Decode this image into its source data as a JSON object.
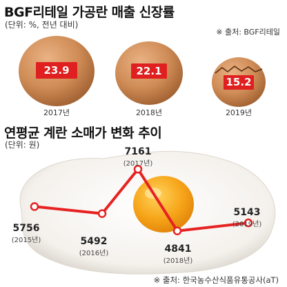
{
  "header": {
    "title": "BGF리테일 가공란 매출 신장률",
    "unit": "(단위: %, 전년 대비)",
    "source": "※ 출처: BGF리테일"
  },
  "section2": {
    "title": "연평균 계란 소매가 변화 추이",
    "unit": "(단위: 원)",
    "source": "※ 출처: 한국농수산식품유통공사(aT)"
  },
  "chart_data": [
    {
      "type": "bar",
      "title": "BGF리테일 가공란 매출 신장률",
      "unit": "%, 전년 대비",
      "categories": [
        "2017년",
        "2018년",
        "2019년"
      ],
      "values": [
        23.9,
        22.1,
        15.2
      ],
      "value_labels": [
        "23.9",
        "22.1",
        "15.2"
      ],
      "colors": {
        "egg": "#c98752",
        "label_bar": "#e02020"
      }
    },
    {
      "type": "line",
      "title": "연평균 계란 소매가 변화 추이",
      "unit": "원",
      "x": [
        "(2015년)",
        "(2016년)",
        "(2017년)",
        "(2018년)",
        "(2019년)"
      ],
      "values": [
        5756,
        5492,
        7161,
        4841,
        5143
      ],
      "value_labels": [
        "5756",
        "5492",
        "7161",
        "4841",
        "5143"
      ],
      "ylim": [
        4600,
        7400
      ],
      "colors": {
        "line": "#e62222",
        "point_fill": "#ffffff"
      }
    }
  ]
}
